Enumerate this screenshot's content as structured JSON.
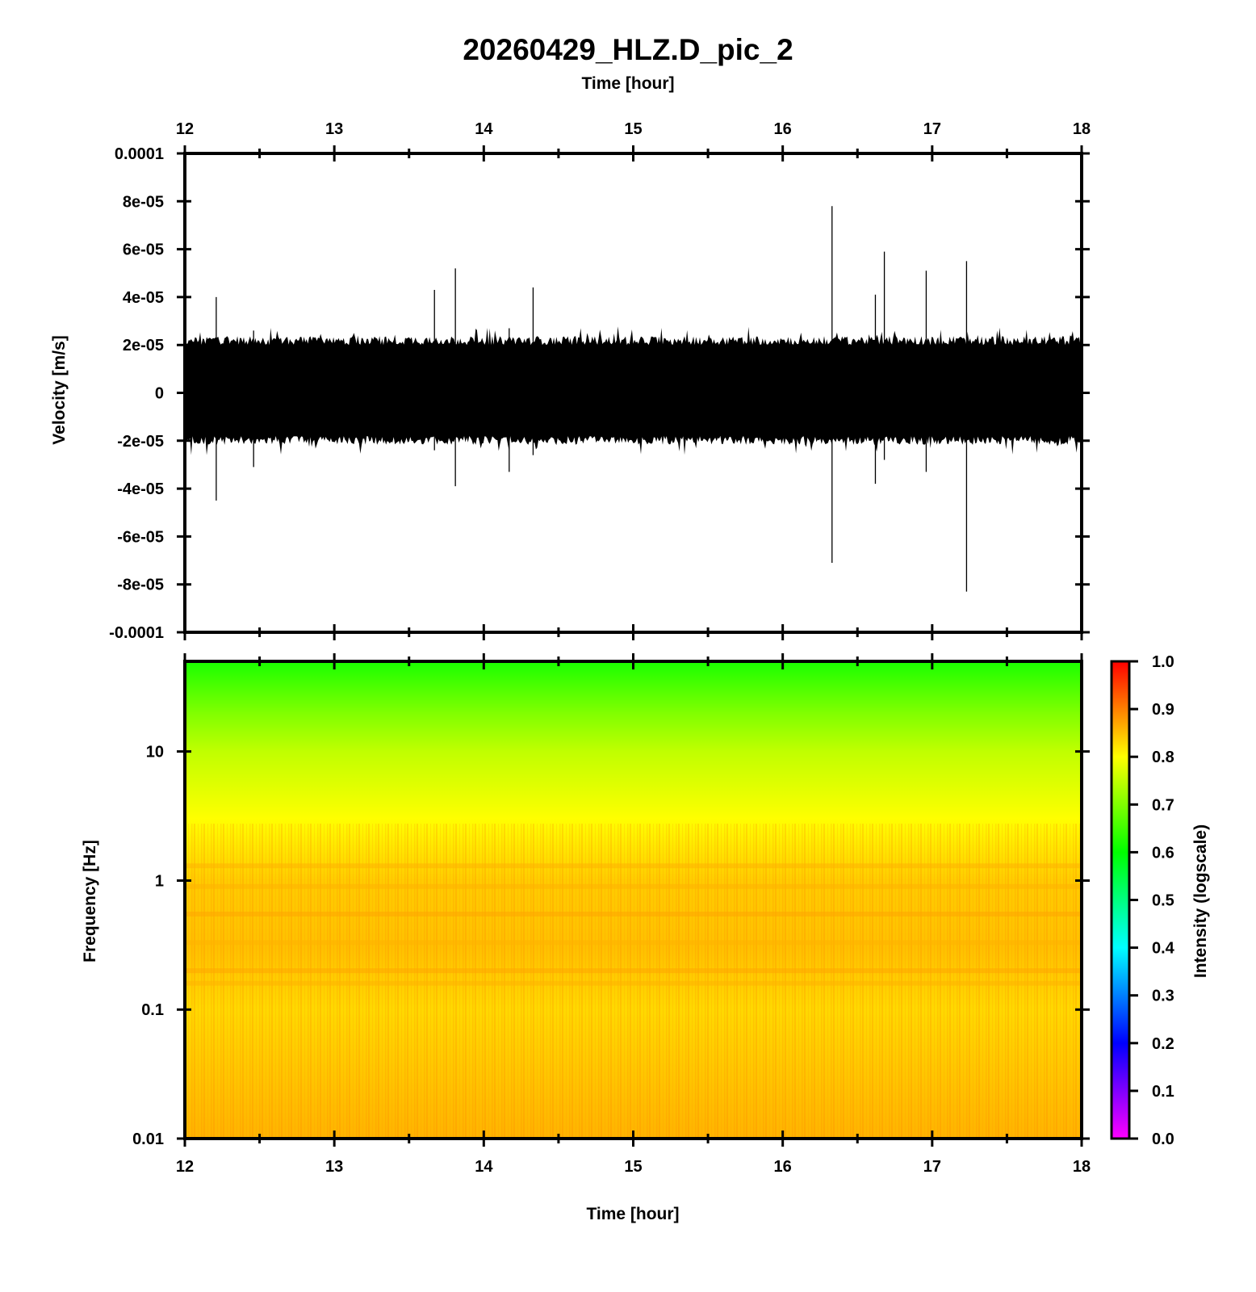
{
  "title": "20260429_HLZ.D_pic_2",
  "chart_data": [
    {
      "type": "line",
      "name": "waveform",
      "xlabel": "Time [hour]",
      "ylabel": "Velocity [m/s]",
      "xlim": [
        12,
        18
      ],
      "ylim": [
        -0.0001,
        0.0001
      ],
      "x_ticks": [
        "12",
        "13",
        "14",
        "15",
        "16",
        "17",
        "18"
      ],
      "y_ticks": [
        "0.0001",
        "8e-05",
        "6e-05",
        "4e-05",
        "2e-05",
        "0",
        "-2e-05",
        "-4e-05",
        "-6e-05",
        "-8e-05",
        "-0.0001"
      ],
      "x_axis_position": "top",
      "noise_band": {
        "upper": 2.2e-05,
        "lower": -2e-05,
        "peak_upper": 2.8e-05,
        "peak_lower": -2.6e-05
      },
      "spikes": [
        {
          "x": 12.21,
          "max": 4e-05,
          "min": -4.5e-05
        },
        {
          "x": 12.46,
          "max": 2.6e-05,
          "min": -3.1e-05
        },
        {
          "x": 13.67,
          "max": 4.3e-05,
          "min": -2.4e-05
        },
        {
          "x": 13.81,
          "max": 5.2e-05,
          "min": -3.9e-05
        },
        {
          "x": 14.17,
          "max": 2.7e-05,
          "min": -3.3e-05
        },
        {
          "x": 14.33,
          "max": 4.4e-05,
          "min": -2.6e-05
        },
        {
          "x": 16.33,
          "max": 7.8e-05,
          "min": -7.1e-05
        },
        {
          "x": 16.62,
          "max": 4.1e-05,
          "min": -3.8e-05
        },
        {
          "x": 16.68,
          "max": 5.9e-05,
          "min": -2.8e-05
        },
        {
          "x": 16.96,
          "max": 5.1e-05,
          "min": -3.3e-05
        },
        {
          "x": 17.23,
          "max": 5.5e-05,
          "min": -8.3e-05
        }
      ]
    },
    {
      "type": "heatmap",
      "name": "spectrogram",
      "xlabel": "Time [hour]",
      "ylabel": "Frequency [Hz]",
      "xlim": [
        12,
        18
      ],
      "ylim": [
        0.01,
        50
      ],
      "yscale": "log",
      "x_ticks": [
        "12",
        "13",
        "14",
        "15",
        "16",
        "17",
        "18"
      ],
      "y_ticks": [
        "10",
        "1",
        "0.1",
        "0.01"
      ],
      "intensity_profile": [
        {
          "freq_hz": 50,
          "intensity": 0.62
        },
        {
          "freq_hz": 20,
          "intensity": 0.7
        },
        {
          "freq_hz": 10,
          "intensity": 0.75
        },
        {
          "freq_hz": 3,
          "intensity": 0.8
        },
        {
          "freq_hz": 1,
          "intensity": 0.84
        },
        {
          "freq_hz": 0.3,
          "intensity": 0.85
        },
        {
          "freq_hz": 0.1,
          "intensity": 0.83
        },
        {
          "freq_hz": 0.01,
          "intensity": 0.86
        }
      ],
      "colorbar": {
        "label": "Intensity (logscale)",
        "range": [
          0.0,
          1.0
        ],
        "ticks": [
          "1.0",
          "0.9",
          "0.8",
          "0.7",
          "0.6",
          "0.5",
          "0.4",
          "0.3",
          "0.2",
          "0.1",
          "0.0"
        ],
        "colormap": [
          "#ff00ff",
          "#8000ff",
          "#0000ff",
          "#0080ff",
          "#00ffff",
          "#00ff80",
          "#00ff00",
          "#80ff00",
          "#ffff00",
          "#ff8000",
          "#ff0000"
        ]
      }
    }
  ]
}
